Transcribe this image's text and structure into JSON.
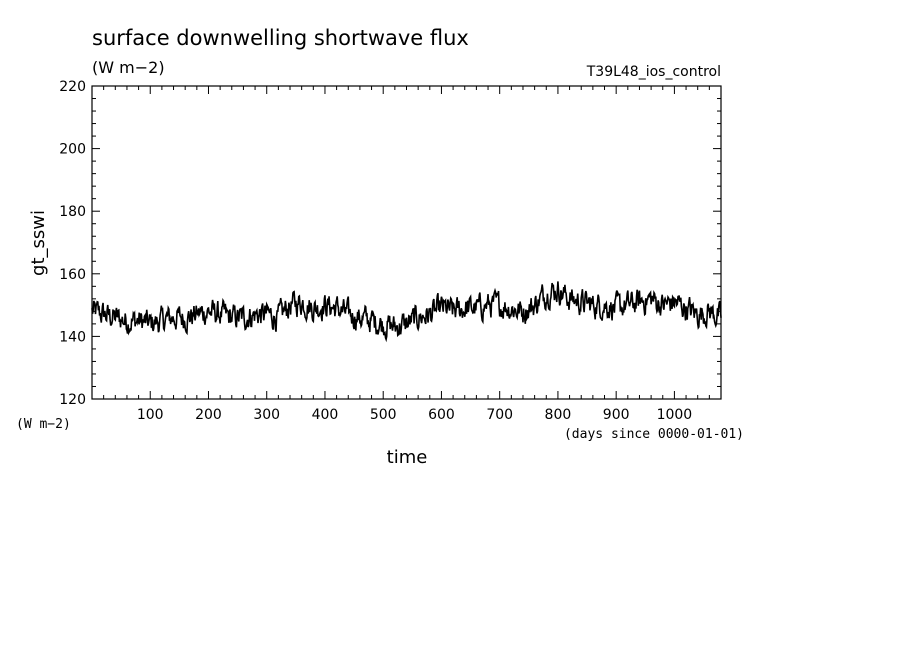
{
  "chart_data": {
    "type": "line",
    "title": "surface downwelling shortwave flux",
    "subtitle": "(W m−2)",
    "run_label": "T39L48_ios_control",
    "xlabel": "time",
    "xunits": "(days since 0000-01-01)",
    "ylabel": "gt_sswi",
    "yunits": "(W m−2)",
    "xlim": [
      0,
      1080
    ],
    "ylim": [
      120,
      220
    ],
    "x_ticks": [
      100,
      200,
      300,
      400,
      500,
      600,
      700,
      800,
      900,
      1000
    ],
    "y_ticks": [
      120,
      140,
      160,
      180,
      200,
      220
    ],
    "grid": false,
    "series": [
      {
        "x": [
          0,
          20,
          40,
          60,
          80,
          100,
          120,
          140,
          160,
          180,
          200,
          220,
          240,
          260,
          280,
          300,
          320,
          340,
          360,
          380,
          400,
          420,
          440,
          460,
          480,
          500,
          520,
          540,
          560,
          580,
          600,
          620,
          640,
          660,
          680,
          700,
          720,
          740,
          760,
          780,
          800,
          820,
          840,
          860,
          880,
          900,
          920,
          940,
          960,
          980,
          1000,
          1020,
          1040,
          1060,
          1080
        ],
        "values": [
          148,
          147,
          146,
          145,
          145,
          144,
          145,
          146,
          146,
          147,
          148,
          147,
          146,
          146,
          147,
          147,
          146,
          150,
          151,
          149,
          150,
          149,
          147,
          146,
          145,
          144,
          143,
          144,
          146,
          147,
          149,
          148,
          149,
          149,
          150,
          150,
          149,
          148,
          150,
          154,
          155,
          152,
          151,
          150,
          150,
          149,
          150,
          151,
          152,
          150,
          151,
          149,
          147,
          148,
          146
        ]
      }
    ]
  }
}
